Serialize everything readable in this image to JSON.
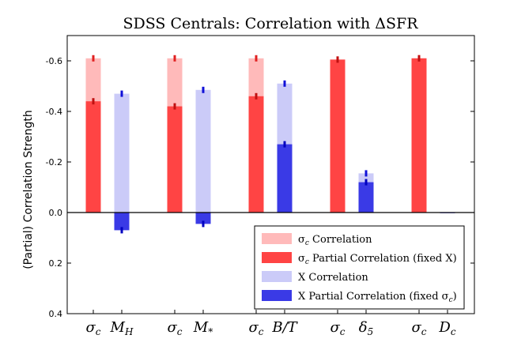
{
  "chart_data": {
    "type": "bar",
    "title": "SDSS Centrals: Correlation with ΔSFR",
    "ylabel": "(Partial) Correlation Strength",
    "xlabel": "",
    "ylim": [
      0.4,
      -0.7
    ],
    "yticks": [
      -0.6,
      -0.4,
      -0.2,
      0.0,
      0.2,
      0.4
    ],
    "ytick_labels": [
      "-0.6",
      "-0.4",
      "-0.2",
      "0.0",
      "0.2",
      "0.4"
    ],
    "grid": false,
    "legend_position": "lower-right",
    "groups": [
      {
        "sigma_label": "σ",
        "sigma_sub": "c",
        "x_label": "M",
        "x_sub": "H",
        "sigma_correlation": -0.61,
        "sigma_partial": -0.44,
        "x_correlation": -0.47,
        "x_partial": 0.07
      },
      {
        "sigma_label": "σ",
        "sigma_sub": "c",
        "x_label": "M",
        "x_sub": "*",
        "sigma_correlation": -0.61,
        "sigma_partial": -0.42,
        "x_correlation": -0.485,
        "x_partial": 0.045
      },
      {
        "sigma_label": "σ",
        "sigma_sub": "c",
        "x_label": "B/T",
        "x_sub": "",
        "sigma_correlation": -0.61,
        "sigma_partial": -0.46,
        "x_correlation": -0.51,
        "x_partial": -0.27
      },
      {
        "sigma_label": "σ",
        "sigma_sub": "c",
        "x_label": "δ",
        "x_sub": "5",
        "sigma_correlation": -0.605,
        "sigma_partial": -0.605,
        "x_correlation": -0.155,
        "x_partial": -0.12
      },
      {
        "sigma_label": "σ",
        "sigma_sub": "c",
        "x_label": "D",
        "x_sub": "c",
        "sigma_correlation": -0.61,
        "sigma_partial": -0.61,
        "x_correlation": 0.0,
        "x_partial": 0.0
      }
    ],
    "series": [
      {
        "name": "σc Correlation",
        "color": "#ffb3b3"
      },
      {
        "name": "σc Partial Correlation (fixed X)",
        "color": "#ff4444"
      },
      {
        "name": "X Correlation",
        "color": "#c8c8f8"
      },
      {
        "name": "X Partial Correlation (fixed σc)",
        "color": "#3a3ae6"
      }
    ],
    "legend": [
      {
        "main": "σ",
        "sub": "c",
        "rest": " Correlation"
      },
      {
        "main": "σ",
        "sub": "c",
        "rest": " Partial Correlation (fixed X)"
      },
      {
        "main": "X Correlation",
        "sub": "",
        "rest": ""
      },
      {
        "main": "X Partial Correlation (fixed σ",
        "sub": "c",
        "rest": ")"
      }
    ]
  }
}
